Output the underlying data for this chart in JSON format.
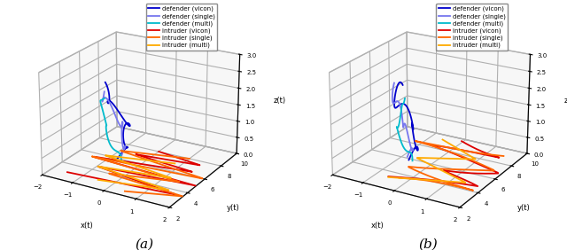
{
  "title_a": "(a)",
  "title_b": "(b)",
  "legend_labels": [
    "defender (vicon)",
    "defender (single)",
    "defender (multi)",
    "intruder (vicon)",
    "intruder (single)",
    "intruder (multi)"
  ],
  "colors": {
    "defender_vicon": "#0000CC",
    "defender_single": "#7777EE",
    "defender_multi": "#00BBCC",
    "intruder_vicon": "#DD0000",
    "intruder_single": "#FF6600",
    "intruder_multi": "#FFAA00"
  },
  "xlabel": "x(t)",
  "ylabel": "y(t)",
  "zlabel": "z(t)",
  "xlim": [
    -2,
    2
  ],
  "ylim": [
    2,
    10
  ],
  "zlim": [
    0,
    3
  ],
  "xticks": [
    -2,
    -1,
    0,
    1,
    2
  ],
  "yticks": [
    2,
    4,
    6,
    8,
    10
  ],
  "zticks": [
    0,
    0.5,
    1.0,
    1.5,
    2.0,
    2.5,
    3.0
  ],
  "elev": 22,
  "azim": -60,
  "background_color": "#ffffff",
  "pane_color": "#f0f0f0",
  "grid_color": "#cccccc"
}
